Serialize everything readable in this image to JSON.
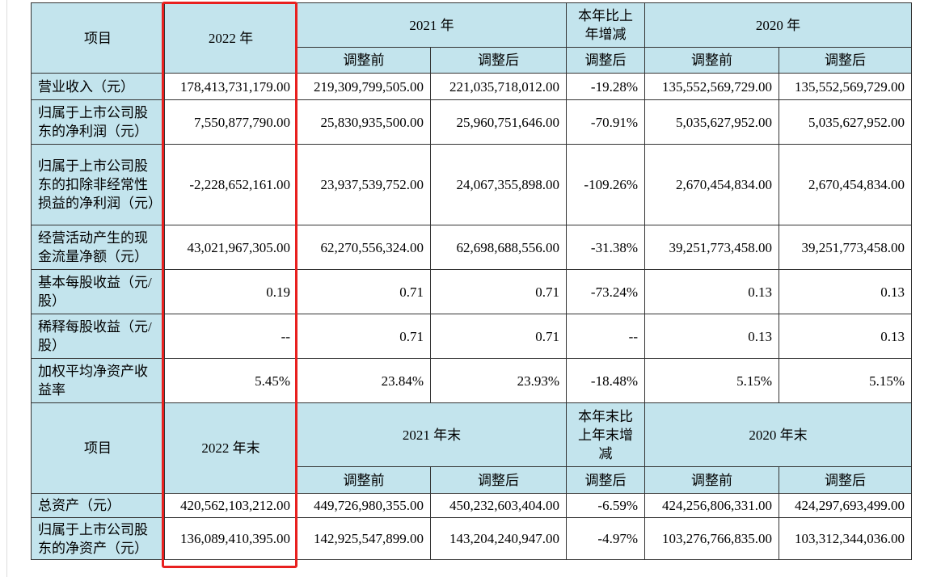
{
  "table": {
    "header": {
      "cols": [
        "项目",
        "2022 年",
        "2021 年",
        "本年比上年增减",
        "2020 年"
      ],
      "sub": [
        "调整前",
        "调整后",
        "调整后",
        "调整前",
        "调整后"
      ]
    },
    "rows": [
      [
        "营业收入（元）",
        "178,413,731,179.00",
        "219,309,799,505.00",
        "221,035,718,012.00",
        "-19.28%",
        "135,552,569,729.00",
        "135,552,569,729.00"
      ],
      [
        "归属于上市公司股东的净利润（元）",
        "7,550,877,790.00",
        "25,830,935,500.00",
        "25,960,751,646.00",
        "-70.91%",
        "5,035,627,952.00",
        "5,035,627,952.00"
      ],
      [
        "归属于上市公司股东的扣除非经常性损益的净利润（元）",
        "-2,228,652,161.00",
        "23,937,539,752.00",
        "24,067,355,898.00",
        "-109.26%",
        "2,670,454,834.00",
        "2,670,454,834.00"
      ],
      [
        "经营活动产生的现金流量净额（元）",
        "43,021,967,305.00",
        "62,270,556,324.00",
        "62,698,688,556.00",
        "-31.38%",
        "39,251,773,458.00",
        "39,251,773,458.00"
      ],
      [
        "基本每股收益（元/股）",
        "0.19",
        "0.71",
        "0.71",
        "-73.24%",
        "0.13",
        "0.13"
      ],
      [
        "稀释每股收益（元/股）",
        "--",
        "0.71",
        "0.71",
        "--",
        "0.13",
        "0.13"
      ],
      [
        "加权平均净资产收益率",
        "5.45%",
        "23.84%",
        "23.93%",
        "-18.48%",
        "5.15%",
        "5.15%"
      ]
    ],
    "header2": {
      "cols": [
        "项目",
        "2022 年末",
        "2021 年末",
        "本年末比上年末增减",
        "2020 年末"
      ],
      "sub": [
        "调整前",
        "调整后",
        "调整后",
        "调整前",
        "调整后"
      ]
    },
    "rows2": [
      [
        "总资产（元）",
        "420,562,103,212.00",
        "449,726,980,355.00",
        "450,232,603,404.00",
        "-6.59%",
        "424,256,806,331.00",
        "424,297,693,499.00"
      ],
      [
        "归属于上市公司股东的净资产（元）",
        "136,089,410,395.00",
        "142,925,547,899.00",
        "143,204,240,947.00",
        "-4.97%",
        "103,276,766,835.00",
        "103,312,344,036.00"
      ]
    ]
  }
}
